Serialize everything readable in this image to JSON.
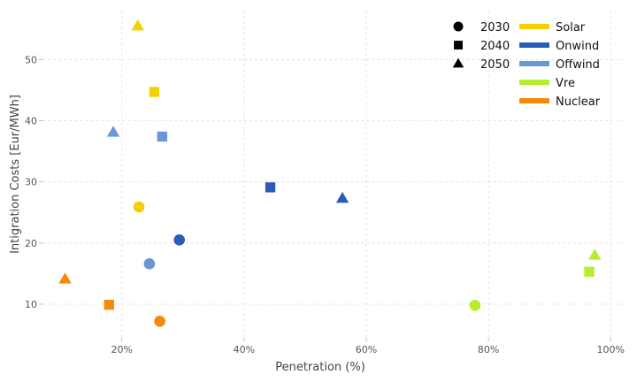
{
  "chart_data": {
    "type": "scatter",
    "title": "",
    "xlabel": "Penetration (%)",
    "ylabel": "Intigration Costs [Eur/MWh]",
    "xlim": [
      7,
      102
    ],
    "ylim": [
      4.5,
      58
    ],
    "xticks": [
      20,
      40,
      60,
      80,
      100
    ],
    "xtick_labels": [
      "20%",
      "40%",
      "60%",
      "80%",
      "100%"
    ],
    "yticks": [
      10,
      20,
      30,
      40,
      50
    ],
    "ytick_labels": [
      "10",
      "20",
      "30",
      "40",
      "50"
    ],
    "grid": true,
    "legend_position": "top-right",
    "years": [
      {
        "label": "2030",
        "marker": "circle"
      },
      {
        "label": "2040",
        "marker": "square"
      },
      {
        "label": "2050",
        "marker": "triangle"
      }
    ],
    "series": [
      {
        "name": "Solar",
        "color": "#f5d000",
        "points": [
          {
            "year": "2030",
            "x": 22.8,
            "y": 25.9
          },
          {
            "year": "2040",
            "x": 25.3,
            "y": 44.7
          },
          {
            "year": "2050",
            "x": 22.6,
            "y": 55.5
          }
        ]
      },
      {
        "name": "Onwind",
        "color": "#2a5cb8",
        "points": [
          {
            "year": "2030",
            "x": 29.4,
            "y": 20.5
          },
          {
            "year": "2040",
            "x": 44.3,
            "y": 29.1
          },
          {
            "year": "2050",
            "x": 56.1,
            "y": 27.3
          }
        ]
      },
      {
        "name": "Offwind",
        "color": "#6a96d8",
        "points": [
          {
            "year": "2030",
            "x": 24.5,
            "y": 16.6
          },
          {
            "year": "2040",
            "x": 26.6,
            "y": 37.4
          },
          {
            "year": "2050",
            "x": 18.6,
            "y": 38.1
          }
        ]
      },
      {
        "name": "Vre",
        "color": "#b8ec2e",
        "points": [
          {
            "year": "2030",
            "x": 77.8,
            "y": 9.8
          },
          {
            "year": "2040",
            "x": 96.5,
            "y": 15.3
          },
          {
            "year": "2050",
            "x": 97.4,
            "y": 18.0
          }
        ]
      },
      {
        "name": "Nuclear",
        "color": "#f58a0a",
        "points": [
          {
            "year": "2030",
            "x": 26.2,
            "y": 7.2
          },
          {
            "year": "2040",
            "x": 17.9,
            "y": 9.9
          },
          {
            "year": "2050",
            "x": 10.7,
            "y": 14.1
          }
        ]
      }
    ]
  }
}
